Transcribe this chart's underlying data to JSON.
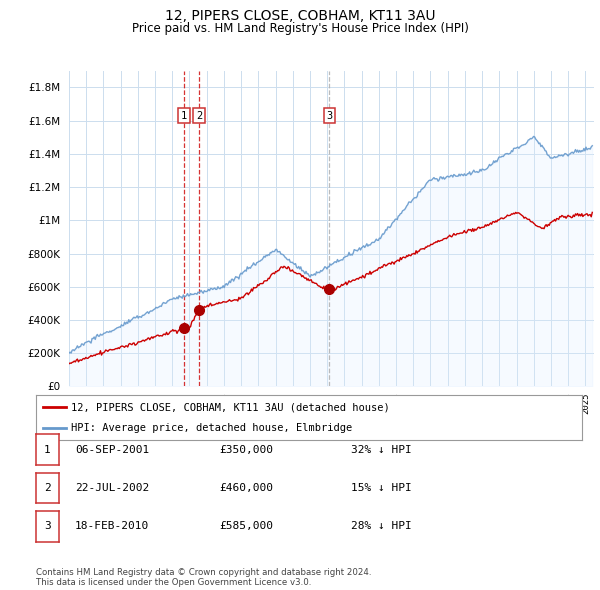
{
  "title": "12, PIPERS CLOSE, COBHAM, KT11 3AU",
  "subtitle": "Price paid vs. HM Land Registry's House Price Index (HPI)",
  "ytick_values": [
    0,
    200000,
    400000,
    600000,
    800000,
    1000000,
    1200000,
    1400000,
    1600000,
    1800000
  ],
  "ylim": [
    0,
    1900000
  ],
  "xlim_start": 1995.0,
  "xlim_end": 2025.5,
  "red_line_color": "#cc0000",
  "blue_line_color": "#6699cc",
  "blue_fill_color": "#ddeeff",
  "sale_marker_color": "#aa0000",
  "legend_red_label": "12, PIPERS CLOSE, COBHAM, KT11 3AU (detached house)",
  "legend_blue_label": "HPI: Average price, detached house, Elmbridge",
  "sales": [
    {
      "num": 1,
      "date": "06-SEP-2001",
      "price": 350000,
      "x": 2001.68,
      "hpi_note": "32% ↓ HPI",
      "vline_color": "#cc0000",
      "vline_style": "--"
    },
    {
      "num": 2,
      "date": "22-JUL-2002",
      "price": 460000,
      "x": 2002.55,
      "hpi_note": "15% ↓ HPI",
      "vline_color": "#cc0000",
      "vline_style": "--"
    },
    {
      "num": 3,
      "date": "18-FEB-2010",
      "price": 585000,
      "x": 2010.13,
      "hpi_note": "28% ↓ HPI",
      "vline_color": "#aaaaaa",
      "vline_style": "--"
    }
  ],
  "footer": "Contains HM Land Registry data © Crown copyright and database right 2024.\nThis data is licensed under the Open Government Licence v3.0.",
  "background_color": "#ffffff",
  "grid_color": "#ccddee"
}
